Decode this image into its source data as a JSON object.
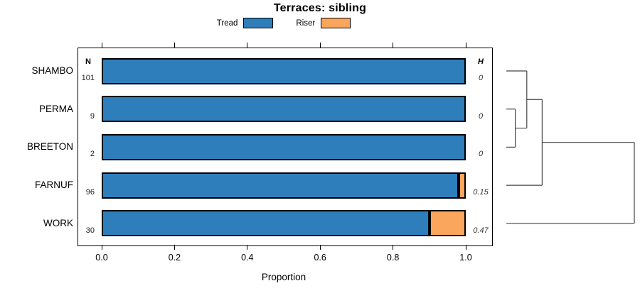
{
  "chart_data": {
    "type": "bar",
    "orientation": "horizontal",
    "stacked": true,
    "grid": false,
    "title": "Terraces: sibling",
    "xlabel": "Proportion",
    "xlim": [
      0,
      1
    ],
    "xticks": [
      0.0,
      0.2,
      0.4,
      0.6,
      0.8,
      1.0
    ],
    "xtick_labels": [
      "0.0",
      "0.2",
      "0.4",
      "0.6",
      "0.8",
      "1.0"
    ],
    "legend_position": "top",
    "categories": [
      "SHAMBO",
      "PERMA",
      "BREETON",
      "FARNUF",
      "WORK"
    ],
    "n_header": "N",
    "n_values": [
      "101",
      "9",
      "2",
      "96",
      "30"
    ],
    "h_header": "H",
    "h_values": [
      "0",
      "0",
      "0",
      "0.15",
      "0.47"
    ],
    "series": [
      {
        "name": "Tread",
        "color": "#2E7EBC",
        "values": [
          1.0,
          1.0,
          1.0,
          0.98,
          0.9
        ]
      },
      {
        "name": "Riser",
        "color": "#FAA65C",
        "values": [
          0.0,
          0.0,
          0.0,
          0.02,
          0.1
        ]
      }
    ],
    "dendrogram": {
      "leaves": [
        "SHAMBO",
        "PERMA",
        "BREETON",
        "FARNUF",
        "WORK"
      ],
      "merges": [
        {
          "a": "PERMA",
          "b": "BREETON",
          "height": 0.07
        },
        {
          "a": "merge0",
          "b": "SHAMBO",
          "height": 0.16
        },
        {
          "a": "merge1",
          "b": "FARNUF",
          "height": 0.28
        },
        {
          "a": "merge2",
          "b": "WORK",
          "height": 1.0
        }
      ],
      "line_color": "#444444"
    }
  }
}
